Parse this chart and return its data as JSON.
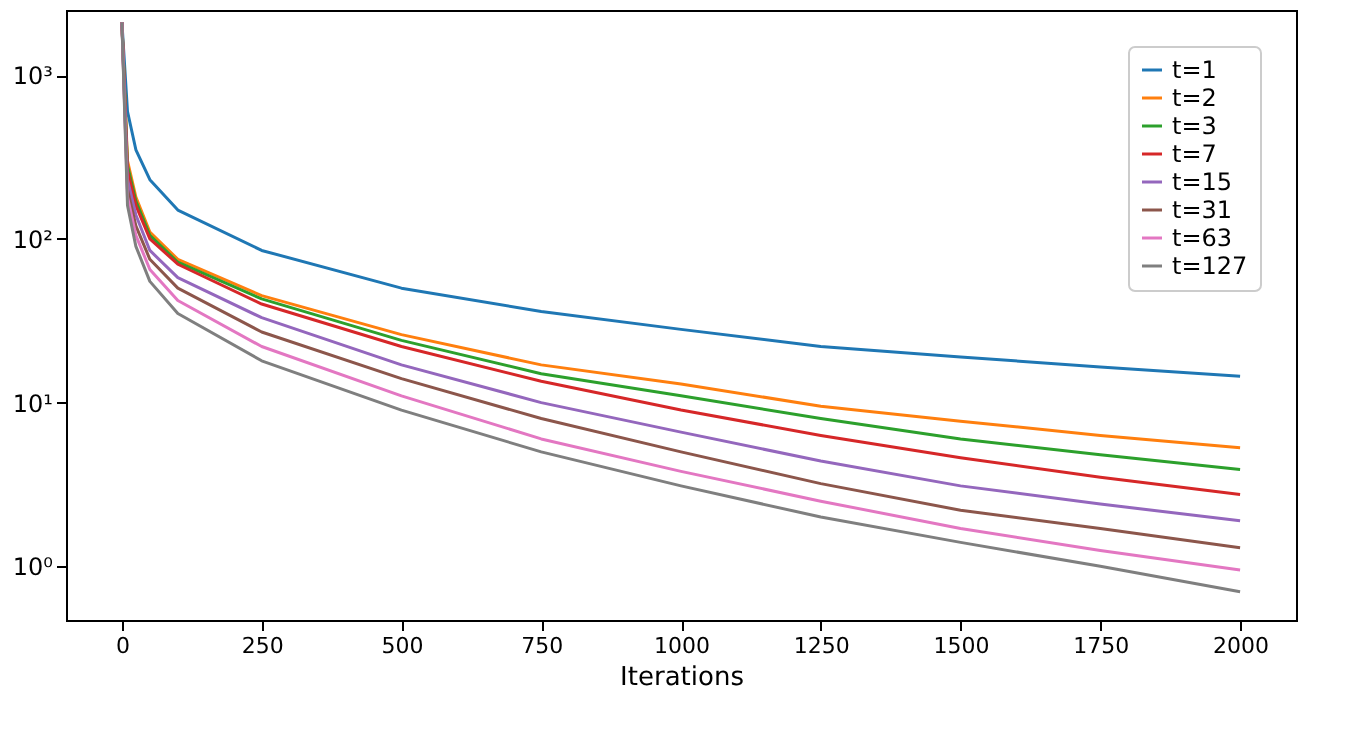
{
  "chart_data": {
    "type": "line",
    "xlabel": "Iterations",
    "log": "y",
    "grid": false,
    "legend": "top right",
    "marker": "none",
    "line_style": "solid",
    "x": [
      0,
      10,
      25,
      50,
      100,
      250,
      500,
      750,
      1000,
      1250,
      1500,
      1750,
      2000
    ],
    "xlim": [
      -100,
      2100
    ],
    "xticks": [
      0,
      250,
      500,
      750,
      1000,
      1250,
      1500,
      1750,
      2000
    ],
    "ylim": [
      0.47,
      2500
    ],
    "yticks": [
      {
        "value": 1,
        "label": "10⁰"
      },
      {
        "value": 10,
        "label": "10¹"
      },
      {
        "value": 100,
        "label": "10²"
      },
      {
        "value": 1000,
        "label": "10³"
      }
    ],
    "series": [
      {
        "name": "t=1",
        "color": "#1f77b4",
        "values": [
          2100,
          600,
          350,
          230,
          150,
          85,
          50,
          36,
          28,
          22,
          19,
          16.5,
          14.5
        ]
      },
      {
        "name": "t=2",
        "color": "#ff7f0e",
        "values": [
          2100,
          300,
          180,
          110,
          75,
          45,
          26,
          17,
          13,
          9.5,
          7.7,
          6.3,
          5.3
        ]
      },
      {
        "name": "t=3",
        "color": "#2ca02c",
        "values": [
          2100,
          280,
          170,
          105,
          72,
          43,
          24,
          15,
          11,
          8,
          6,
          4.8,
          3.9
        ]
      },
      {
        "name": "t=7",
        "color": "#d62728",
        "values": [
          2100,
          260,
          160,
          100,
          70,
          40,
          22,
          13.5,
          9,
          6.3,
          4.6,
          3.5,
          2.75
        ]
      },
      {
        "name": "t=15",
        "color": "#9467bd",
        "values": [
          2100,
          230,
          140,
          85,
          58,
          33,
          17,
          10,
          6.6,
          4.4,
          3.1,
          2.4,
          1.9
        ]
      },
      {
        "name": "t=31",
        "color": "#8c564b",
        "values": [
          2100,
          200,
          120,
          75,
          50,
          27,
          14,
          8,
          5,
          3.2,
          2.2,
          1.7,
          1.3
        ]
      },
      {
        "name": "t=63",
        "color": "#e377c2",
        "values": [
          2100,
          180,
          105,
          65,
          42,
          22,
          11,
          6,
          3.8,
          2.5,
          1.7,
          1.25,
          0.95
        ]
      },
      {
        "name": "t=127",
        "color": "#7f7f7f",
        "values": [
          2100,
          160,
          90,
          55,
          35,
          18,
          9,
          5,
          3.1,
          2,
          1.4,
          1,
          0.7
        ]
      }
    ]
  }
}
